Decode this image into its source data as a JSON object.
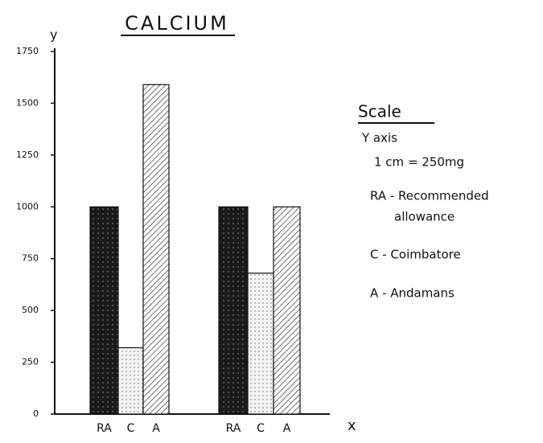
{
  "chart_data": {
    "type": "bar",
    "title": "CALCIUM",
    "y_label": "y",
    "x_label": "x",
    "categories": [
      "RA",
      "C",
      "A",
      "RA",
      "C",
      "A"
    ],
    "values": [
      1000,
      320,
      1590,
      1000,
      680,
      1000
    ],
    "ylim": [
      0,
      1750
    ],
    "yticks": [
      0,
      250,
      500,
      750,
      1000,
      1250,
      1500,
      1750
    ],
    "scale_note": {
      "title": "Scale",
      "lines": [
        "Y axis",
        "1 cm = 250mg",
        "RA - Recommended",
        "allowance",
        "C - Coimbatore",
        "A - Andamans"
      ]
    }
  }
}
